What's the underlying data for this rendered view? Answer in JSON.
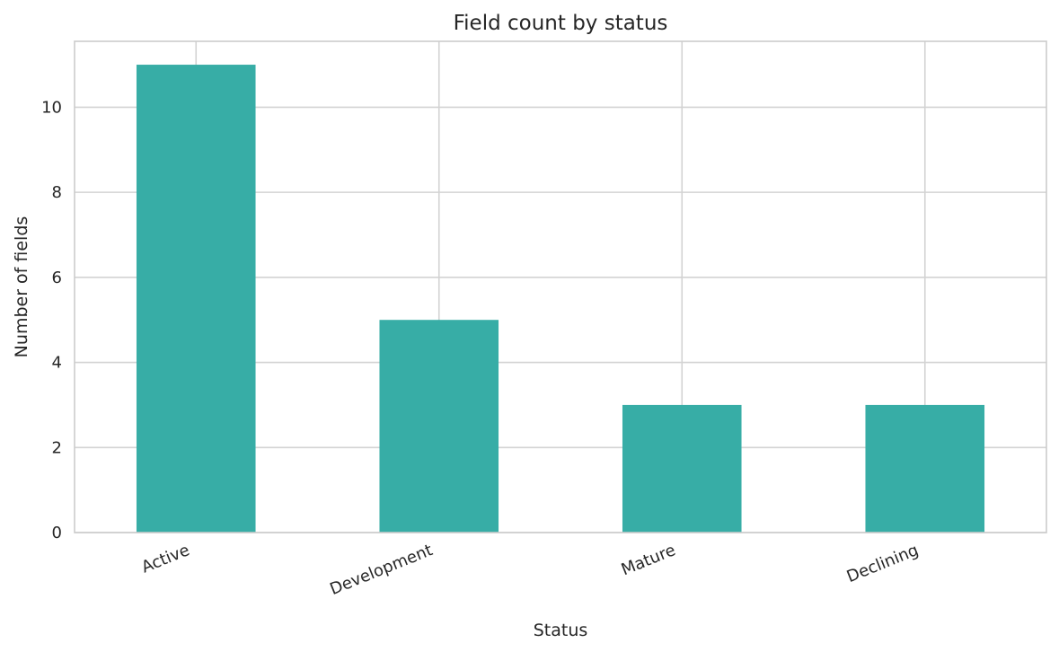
{
  "chart_data": {
    "type": "bar",
    "title": "Field count by status",
    "xlabel": "Status",
    "ylabel": "Number of fields",
    "categories": [
      "Active",
      "Development",
      "Mature",
      "Declining"
    ],
    "values": [
      11,
      5,
      3,
      3
    ],
    "ylim": [
      0,
      11.55
    ],
    "yticks": [
      0,
      2,
      4,
      6,
      8,
      10
    ],
    "bar_color": "#37ada6",
    "grid": true,
    "x_tick_rotation": "rotated"
  }
}
